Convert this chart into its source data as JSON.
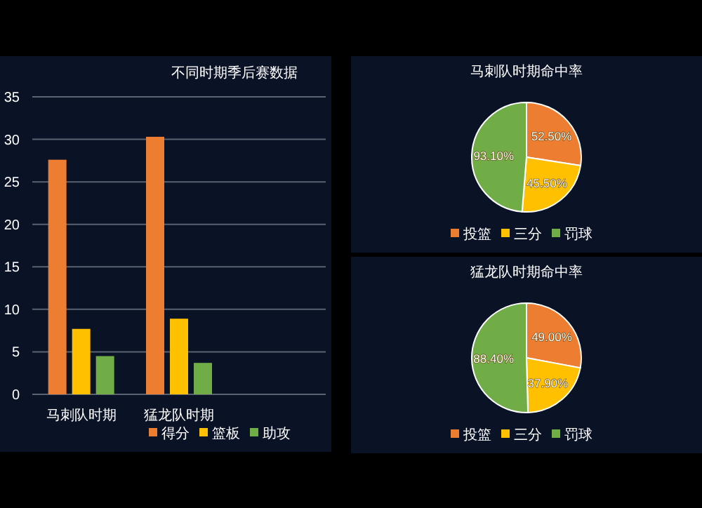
{
  "chart_data": [
    {
      "type": "bar",
      "title": "不同时期季后赛数据",
      "categories": [
        "马刺队时期",
        "猛龙队时期",
        null
      ],
      "series": [
        {
          "name": "得分",
          "color": "#ed7d31",
          "values": [
            27.6,
            30.3,
            null
          ]
        },
        {
          "name": "篮板",
          "color": "#ffc000",
          "values": [
            7.7,
            8.9,
            null
          ]
        },
        {
          "name": "助攻",
          "color": "#70ad47",
          "values": [
            4.5,
            3.7,
            null
          ]
        }
      ],
      "ylim": [
        0,
        35
      ],
      "yticks": [
        0,
        5,
        10,
        15,
        20,
        25,
        30,
        35
      ],
      "grid": "y",
      "legend": "bottom"
    },
    {
      "type": "pie",
      "title": "马刺队时期命中率",
      "categories": [
        "投篮",
        "三分",
        "罚球"
      ],
      "values": [
        52.5,
        45.5,
        93.1
      ],
      "colors": [
        "#ed7d31",
        "#ffc000",
        "#70ad47"
      ],
      "value_labels": [
        "52.50%",
        "45.50%",
        "93.10%"
      ],
      "legend": "bottom"
    },
    {
      "type": "pie",
      "title": "猛龙队时期命中率",
      "categories": [
        "投篮",
        "三分",
        "罚球"
      ],
      "values": [
        49.0,
        37.9,
        88.4
      ],
      "colors": [
        "#ed7d31",
        "#ffc000",
        "#70ad47"
      ],
      "value_labels": [
        "49.00%",
        "37.90%",
        "88.40%"
      ],
      "legend": "bottom"
    }
  ]
}
